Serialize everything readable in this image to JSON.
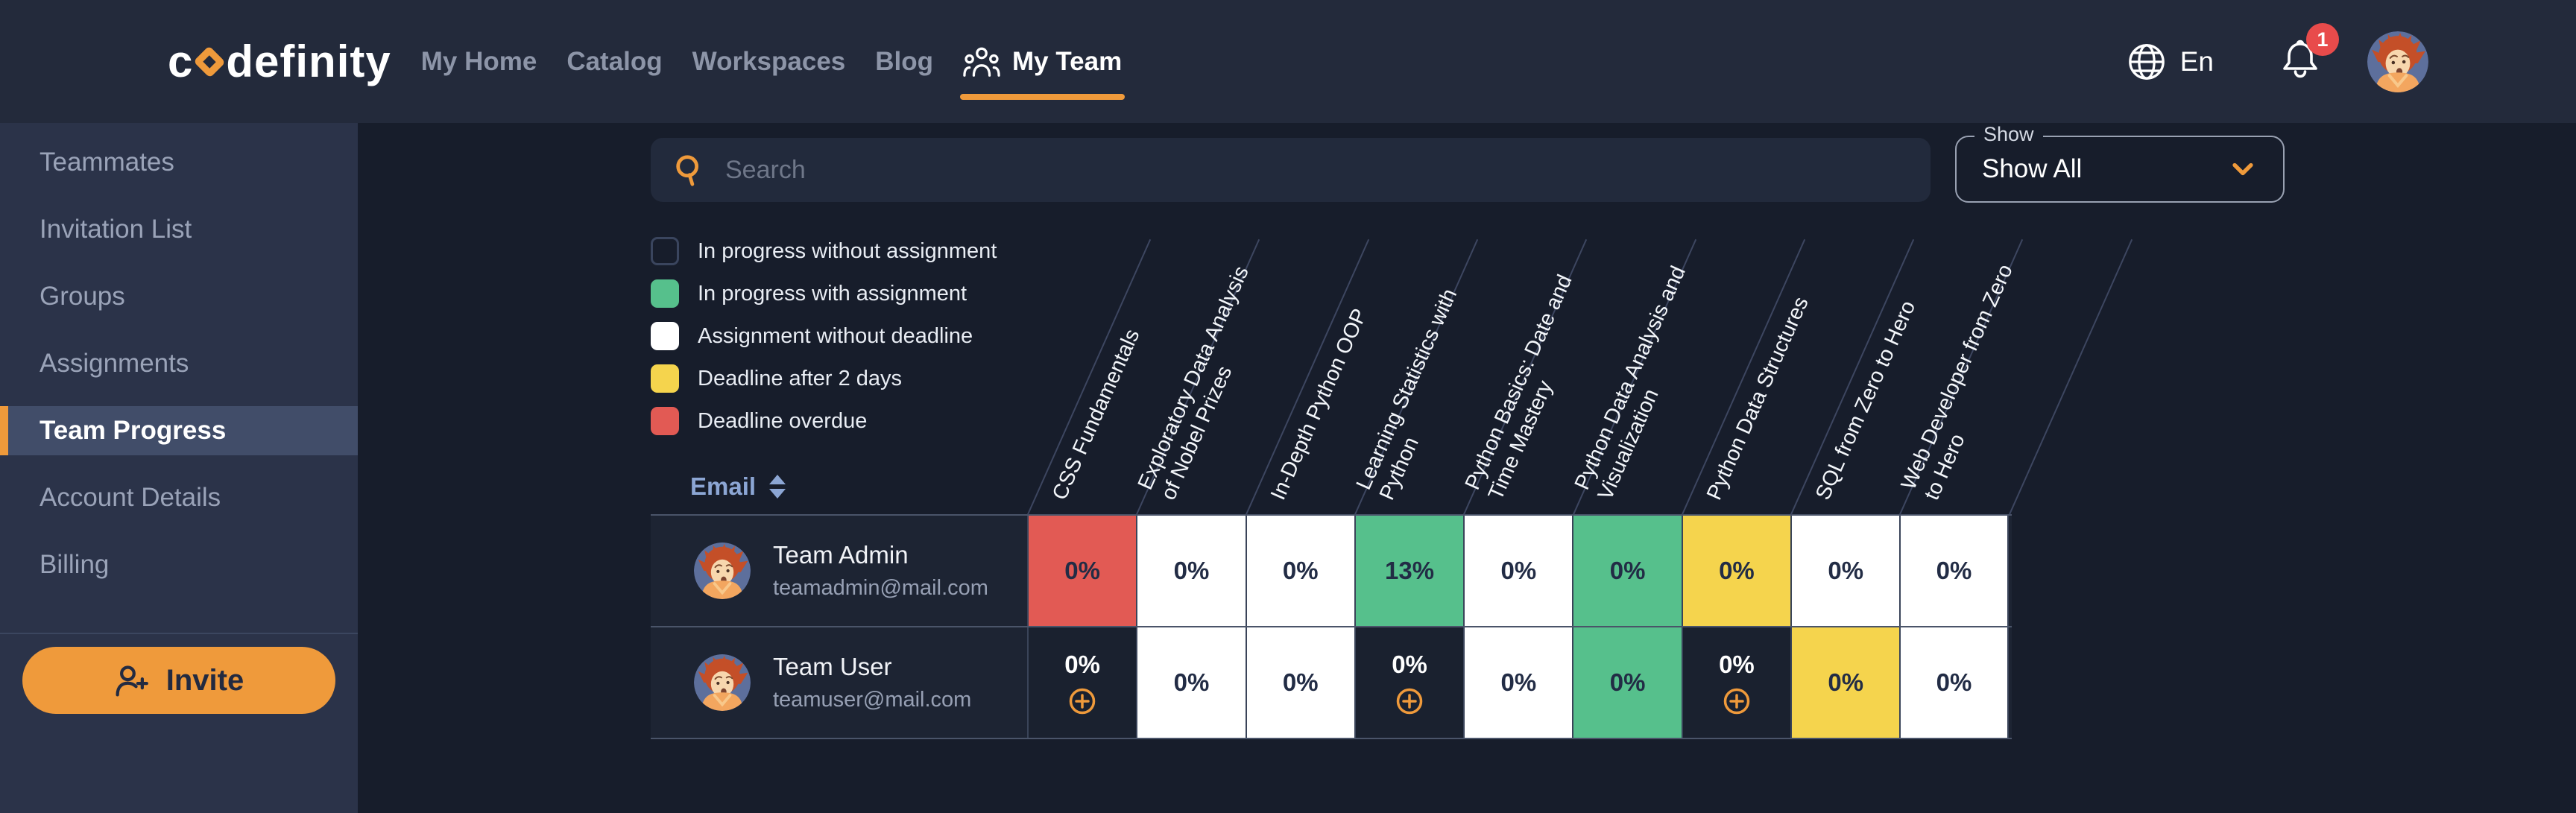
{
  "brand": {
    "logo_pre": "c",
    "logo_post": "definity"
  },
  "nav": {
    "items": [
      {
        "label": "My Home"
      },
      {
        "label": "Catalog"
      },
      {
        "label": "Workspaces"
      },
      {
        "label": "Blog"
      },
      {
        "label": "My Team",
        "active": true
      }
    ],
    "language": "En",
    "notifications_count": "1"
  },
  "sidebar": {
    "items": [
      {
        "label": "Teammates"
      },
      {
        "label": "Invitation List"
      },
      {
        "label": "Groups"
      },
      {
        "label": "Assignments"
      },
      {
        "label": "Team Progress",
        "active": true
      },
      {
        "label": "Account Details"
      },
      {
        "label": "Billing"
      }
    ],
    "invite_label": "Invite"
  },
  "filters": {
    "search_placeholder": "Search",
    "show_label": "Show",
    "show_value": "Show All"
  },
  "legend": {
    "items": [
      {
        "label": "In progress without assignment",
        "status": "no-assignment"
      },
      {
        "label": "In progress with assignment",
        "status": "with-assignment"
      },
      {
        "label": "Assignment without deadline",
        "status": "no-deadline"
      },
      {
        "label": "Deadline after 2 days",
        "status": "deadline-2days"
      },
      {
        "label": "Deadline overdue",
        "status": "overdue"
      }
    ]
  },
  "colors": {
    "accent_orange": "#EF9A3B",
    "green": "#56C08C",
    "yellow": "#F5D44D",
    "red": "#E25A54",
    "white_cell": "#FFFFFF"
  },
  "progress_table": {
    "sort_header": "Email",
    "courses": [
      "CSS Fundamentals",
      "Exploratory Data Analysis\nof Nobel Prizes",
      "In-Depth Python OOP",
      "Learning Statistics with\nPython",
      "Python Basics: Date and\nTime Mastery",
      "Python Data Analysis and\nVisualization",
      "Python Data Structures",
      "SQL from Zero to Hero",
      "Web Developer from Zero\nto Hero"
    ],
    "rows": [
      {
        "name": "Team Admin",
        "email": "teamadmin@mail.com",
        "cells": [
          {
            "value": "0%",
            "status": "overdue"
          },
          {
            "value": "0%",
            "status": "no-deadline"
          },
          {
            "value": "0%",
            "status": "no-deadline"
          },
          {
            "value": "13%",
            "status": "with-assignment"
          },
          {
            "value": "0%",
            "status": "no-deadline"
          },
          {
            "value": "0%",
            "status": "with-assignment"
          },
          {
            "value": "0%",
            "status": "deadline-2days"
          },
          {
            "value": "0%",
            "status": "no-deadline"
          },
          {
            "value": "0%",
            "status": "no-deadline"
          }
        ]
      },
      {
        "name": "Team User",
        "email": "teamuser@mail.com",
        "cells": [
          {
            "value": "0%",
            "status": "no-assignment",
            "addable": true
          },
          {
            "value": "0%",
            "status": "no-deadline"
          },
          {
            "value": "0%",
            "status": "no-deadline"
          },
          {
            "value": "0%",
            "status": "no-assignment",
            "addable": true
          },
          {
            "value": "0%",
            "status": "no-deadline"
          },
          {
            "value": "0%",
            "status": "with-assignment"
          },
          {
            "value": "0%",
            "status": "no-assignment",
            "addable": true
          },
          {
            "value": "0%",
            "status": "deadline-2days"
          },
          {
            "value": "0%",
            "status": "no-deadline"
          }
        ]
      }
    ]
  }
}
